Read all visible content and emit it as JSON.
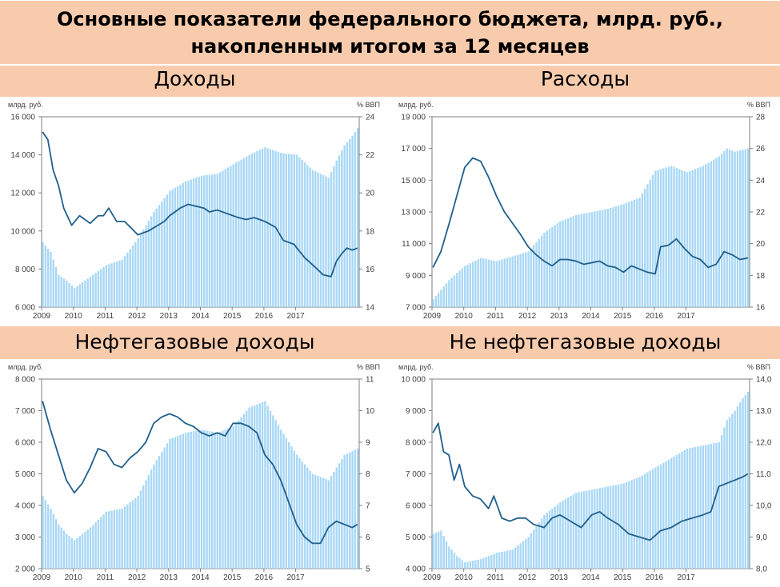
{
  "header": {
    "title_line1": "Основные показатели федерального бюджета, млрд. руб.,",
    "title_line2": "накопленным итогом за 12 месяцев"
  },
  "colors": {
    "band": "#f8cbad",
    "bars": "#a9d8f5",
    "line": "#1f5f8b",
    "axis_text": "#404040"
  },
  "chart_data": [
    {
      "id": "revenue",
      "panel_title": "Доходы",
      "type": "bar+line",
      "left_unit": "млрд. руб.",
      "right_unit": "% ВВП",
      "x_labels": [
        "2009",
        "2010",
        "2011",
        "2012",
        "2013",
        "2014",
        "2015",
        "2016",
        "2017"
      ],
      "left_ticks": [
        "6 000",
        "8 000",
        "10 000",
        "12 000",
        "14 000",
        "16 000"
      ],
      "right_ticks": [
        "14",
        "16",
        "18",
        "20",
        "22",
        "24"
      ],
      "ylim_left": [
        6000,
        16000
      ],
      "ylim_right": [
        14,
        24
      ],
      "bars_series": {
        "name": "млрд. руб.",
        "keyframes": [
          [
            0,
            9400
          ],
          [
            3,
            8900
          ],
          [
            6,
            7700
          ],
          [
            9,
            7400
          ],
          [
            12,
            7000
          ],
          [
            18,
            7600
          ],
          [
            24,
            8200
          ],
          [
            30,
            8500
          ],
          [
            36,
            9600
          ],
          [
            42,
            11000
          ],
          [
            48,
            12100
          ],
          [
            54,
            12600
          ],
          [
            60,
            12900
          ],
          [
            66,
            13000
          ],
          [
            72,
            13500
          ],
          [
            78,
            14000
          ],
          [
            84,
            14400
          ],
          [
            90,
            14100
          ],
          [
            96,
            14000
          ],
          [
            102,
            13200
          ],
          [
            108,
            12800
          ],
          [
            111,
            13700
          ],
          [
            114,
            14500
          ],
          [
            117,
            15000
          ],
          [
            119,
            15400
          ]
        ]
      },
      "line_series": {
        "name": "% ВВП",
        "keyframes": [
          [
            0,
            23.2
          ],
          [
            2,
            22.8
          ],
          [
            4,
            21.2
          ],
          [
            6,
            20.4
          ],
          [
            8,
            19.2
          ],
          [
            11,
            18.3
          ],
          [
            14,
            18.8
          ],
          [
            18,
            18.4
          ],
          [
            21,
            18.8
          ],
          [
            23,
            18.8
          ],
          [
            25,
            19.2
          ],
          [
            28,
            18.5
          ],
          [
            31,
            18.5
          ],
          [
            36,
            17.8
          ],
          [
            40,
            18.0
          ],
          [
            46,
            18.5
          ],
          [
            48,
            18.8
          ],
          [
            52,
            19.2
          ],
          [
            55,
            19.4
          ],
          [
            58,
            19.3
          ],
          [
            61,
            19.2
          ],
          [
            63,
            19.0
          ],
          [
            66,
            19.1
          ],
          [
            70,
            18.9
          ],
          [
            74,
            18.7
          ],
          [
            77,
            18.6
          ],
          [
            80,
            18.7
          ],
          [
            84,
            18.5
          ],
          [
            88,
            18.2
          ],
          [
            91,
            17.5
          ],
          [
            95,
            17.3
          ],
          [
            99,
            16.6
          ],
          [
            103,
            16.1
          ],
          [
            106,
            15.7
          ],
          [
            109,
            15.6
          ],
          [
            111,
            16.4
          ],
          [
            113,
            16.8
          ],
          [
            115,
            17.1
          ],
          [
            117,
            17.0
          ],
          [
            119,
            17.1
          ]
        ]
      }
    },
    {
      "id": "expenditure",
      "panel_title": "Расходы",
      "type": "bar+line",
      "left_unit": "млрд. руб.",
      "right_unit": "% ВВП",
      "x_labels": [
        "2009",
        "2010",
        "2011",
        "2012",
        "2013",
        "2014",
        "2015",
        "2016",
        "2017"
      ],
      "left_ticks": [
        "7 000",
        "9 000",
        "11 000",
        "13 000",
        "15 000",
        "17 000",
        "19 000"
      ],
      "right_ticks": [
        "16",
        "18",
        "20",
        "22",
        "24",
        "26",
        "28"
      ],
      "ylim_left": [
        7000,
        19000
      ],
      "ylim_right": [
        16,
        28
      ],
      "bars_series": {
        "name": "млрд. руб.",
        "keyframes": [
          [
            0,
            7500
          ],
          [
            6,
            8700
          ],
          [
            12,
            9600
          ],
          [
            18,
            10100
          ],
          [
            24,
            9900
          ],
          [
            30,
            10200
          ],
          [
            36,
            10500
          ],
          [
            42,
            11700
          ],
          [
            48,
            12400
          ],
          [
            54,
            12800
          ],
          [
            60,
            13000
          ],
          [
            66,
            13200
          ],
          [
            72,
            13500
          ],
          [
            78,
            13900
          ],
          [
            84,
            15600
          ],
          [
            90,
            15900
          ],
          [
            96,
            15500
          ],
          [
            102,
            15900
          ],
          [
            108,
            16500
          ],
          [
            111,
            17000
          ],
          [
            114,
            16800
          ],
          [
            119,
            17000
          ]
        ]
      },
      "line_series": {
        "name": "% ВВП",
        "keyframes": [
          [
            0,
            18.5
          ],
          [
            3,
            19.5
          ],
          [
            6,
            21.2
          ],
          [
            9,
            23.0
          ],
          [
            12,
            24.8
          ],
          [
            15,
            25.4
          ],
          [
            18,
            25.2
          ],
          [
            21,
            24.2
          ],
          [
            24,
            23.0
          ],
          [
            27,
            22.0
          ],
          [
            30,
            21.3
          ],
          [
            33,
            20.6
          ],
          [
            36,
            19.8
          ],
          [
            39,
            19.3
          ],
          [
            42,
            18.9
          ],
          [
            45,
            18.6
          ],
          [
            48,
            19.0
          ],
          [
            51,
            19.0
          ],
          [
            54,
            18.9
          ],
          [
            57,
            18.7
          ],
          [
            60,
            18.8
          ],
          [
            63,
            18.9
          ],
          [
            66,
            18.6
          ],
          [
            69,
            18.5
          ],
          [
            72,
            18.2
          ],
          [
            75,
            18.6
          ],
          [
            78,
            18.4
          ],
          [
            81,
            18.2
          ],
          [
            84,
            18.1
          ],
          [
            86,
            19.8
          ],
          [
            89,
            19.9
          ],
          [
            92,
            20.3
          ],
          [
            95,
            19.7
          ],
          [
            98,
            19.2
          ],
          [
            101,
            19.0
          ],
          [
            104,
            18.5
          ],
          [
            107,
            18.7
          ],
          [
            110,
            19.5
          ],
          [
            113,
            19.3
          ],
          [
            116,
            19.0
          ],
          [
            119,
            19.1
          ]
        ]
      }
    },
    {
      "id": "oil_gas",
      "panel_title": "Нефтегазовые доходы",
      "type": "bar+line",
      "left_unit": "млрд. руб.",
      "right_unit": "% ВВП",
      "x_labels": [
        "2009",
        "2010",
        "2011",
        "2012",
        "2013",
        "2014",
        "2015",
        "2016",
        "2017"
      ],
      "left_ticks": [
        "2 000",
        "3 000",
        "4 000",
        "5 000",
        "6 000",
        "7 000",
        "8 000"
      ],
      "right_ticks": [
        "5",
        "6",
        "7",
        "8",
        "9",
        "10",
        "11"
      ],
      "ylim_left": [
        2000,
        8000
      ],
      "ylim_right": [
        5,
        11
      ],
      "bars_series": {
        "name": "млрд. руб.",
        "keyframes": [
          [
            0,
            4300
          ],
          [
            3,
            3900
          ],
          [
            6,
            3400
          ],
          [
            9,
            3100
          ],
          [
            12,
            2900
          ],
          [
            18,
            3300
          ],
          [
            24,
            3800
          ],
          [
            30,
            3900
          ],
          [
            36,
            4300
          ],
          [
            42,
            5300
          ],
          [
            48,
            6100
          ],
          [
            54,
            6300
          ],
          [
            60,
            6400
          ],
          [
            66,
            6300
          ],
          [
            72,
            6500
          ],
          [
            78,
            7100
          ],
          [
            84,
            7300
          ],
          [
            90,
            6400
          ],
          [
            96,
            5600
          ],
          [
            102,
            5000
          ],
          [
            108,
            4800
          ],
          [
            111,
            5200
          ],
          [
            114,
            5600
          ],
          [
            119,
            5800
          ]
        ]
      },
      "line_series": {
        "name": "% ВВП",
        "keyframes": [
          [
            0,
            10.3
          ],
          [
            3,
            9.4
          ],
          [
            6,
            8.6
          ],
          [
            9,
            7.8
          ],
          [
            12,
            7.4
          ],
          [
            15,
            7.7
          ],
          [
            18,
            8.2
          ],
          [
            21,
            8.8
          ],
          [
            24,
            8.7
          ],
          [
            27,
            8.3
          ],
          [
            30,
            8.2
          ],
          [
            33,
            8.5
          ],
          [
            36,
            8.7
          ],
          [
            39,
            9.0
          ],
          [
            42,
            9.6
          ],
          [
            45,
            9.8
          ],
          [
            48,
            9.9
          ],
          [
            51,
            9.8
          ],
          [
            54,
            9.6
          ],
          [
            57,
            9.5
          ],
          [
            60,
            9.3
          ],
          [
            63,
            9.2
          ],
          [
            66,
            9.3
          ],
          [
            69,
            9.2
          ],
          [
            72,
            9.6
          ],
          [
            75,
            9.6
          ],
          [
            78,
            9.5
          ],
          [
            81,
            9.3
          ],
          [
            84,
            8.6
          ],
          [
            87,
            8.3
          ],
          [
            90,
            7.8
          ],
          [
            93,
            7.1
          ],
          [
            96,
            6.4
          ],
          [
            99,
            6.0
          ],
          [
            102,
            5.8
          ],
          [
            105,
            5.8
          ],
          [
            108,
            6.3
          ],
          [
            111,
            6.5
          ],
          [
            114,
            6.4
          ],
          [
            117,
            6.3
          ],
          [
            119,
            6.4
          ]
        ]
      }
    },
    {
      "id": "non_oil_gas",
      "panel_title": "Не нефтегазовые доходы",
      "type": "bar+line",
      "left_unit": "млрд. руб.",
      "right_unit": "% ВВП",
      "x_labels": [
        "2009",
        "2010",
        "2011",
        "2012",
        "2013",
        "2014",
        "2015",
        "2016",
        "2017"
      ],
      "left_ticks": [
        "4 000",
        "5 000",
        "6 000",
        "7 000",
        "8 000",
        "9 000",
        "10 000"
      ],
      "right_ticks": [
        "8,0",
        "9,0",
        "10,0",
        "11,0",
        "12,0",
        "13,0",
        "14,0"
      ],
      "ylim_left": [
        4000,
        10000
      ],
      "ylim_right": [
        8,
        14
      ],
      "bars_series": {
        "name": "млрд. руб.",
        "keyframes": [
          [
            0,
            5100
          ],
          [
            3,
            5200
          ],
          [
            6,
            4700
          ],
          [
            9,
            4400
          ],
          [
            12,
            4200
          ],
          [
            18,
            4300
          ],
          [
            24,
            4500
          ],
          [
            30,
            4600
          ],
          [
            36,
            5000
          ],
          [
            42,
            5700
          ],
          [
            48,
            6100
          ],
          [
            54,
            6400
          ],
          [
            60,
            6500
          ],
          [
            66,
            6600
          ],
          [
            72,
            6700
          ],
          [
            78,
            6900
          ],
          [
            84,
            7200
          ],
          [
            90,
            7500
          ],
          [
            96,
            7800
          ],
          [
            102,
            7900
          ],
          [
            108,
            8000
          ],
          [
            111,
            8700
          ],
          [
            114,
            9000
          ],
          [
            117,
            9400
          ],
          [
            119,
            9600
          ]
        ]
      },
      "line_series": {
        "name": "% ВВП",
        "keyframes": [
          [
            0,
            12.3
          ],
          [
            2,
            12.6
          ],
          [
            4,
            11.7
          ],
          [
            6,
            11.6
          ],
          [
            8,
            10.8
          ],
          [
            10,
            11.3
          ],
          [
            12,
            10.6
          ],
          [
            15,
            10.3
          ],
          [
            18,
            10.2
          ],
          [
            21,
            9.9
          ],
          [
            23,
            10.3
          ],
          [
            26,
            9.6
          ],
          [
            29,
            9.5
          ],
          [
            32,
            9.6
          ],
          [
            35,
            9.6
          ],
          [
            38,
            9.4
          ],
          [
            42,
            9.3
          ],
          [
            45,
            9.6
          ],
          [
            48,
            9.7
          ],
          [
            52,
            9.5
          ],
          [
            56,
            9.3
          ],
          [
            60,
            9.7
          ],
          [
            63,
            9.8
          ],
          [
            66,
            9.6
          ],
          [
            70,
            9.4
          ],
          [
            74,
            9.1
          ],
          [
            78,
            9.0
          ],
          [
            82,
            8.9
          ],
          [
            86,
            9.2
          ],
          [
            90,
            9.3
          ],
          [
            94,
            9.5
          ],
          [
            98,
            9.6
          ],
          [
            102,
            9.7
          ],
          [
            105,
            9.8
          ],
          [
            108,
            10.6
          ],
          [
            111,
            10.7
          ],
          [
            114,
            10.8
          ],
          [
            117,
            10.9
          ],
          [
            119,
            11.0
          ]
        ]
      }
    }
  ]
}
